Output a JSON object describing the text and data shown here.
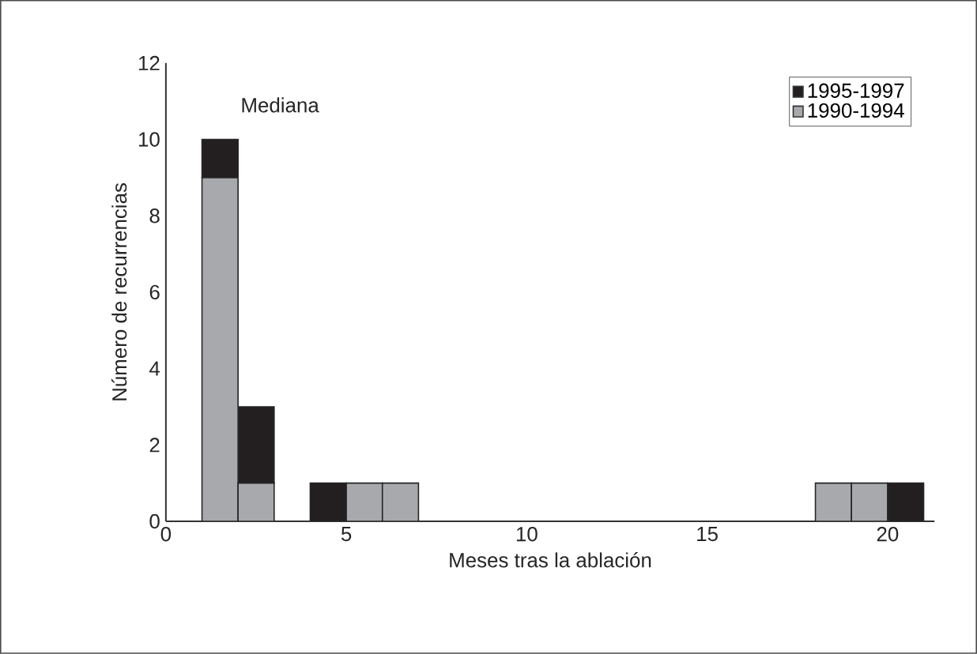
{
  "chart_data": {
    "type": "bar",
    "stacked": true,
    "x": [
      1.5,
      2.5,
      4.5,
      5.5,
      6.5,
      18.5,
      19.5,
      20.5
    ],
    "series": [
      {
        "name": "1990-1994",
        "color": "#a7a9ac",
        "values": [
          9,
          1,
          0,
          1,
          1,
          1,
          1,
          0
        ]
      },
      {
        "name": "1995-1997",
        "color": "#231f20",
        "values": [
          1,
          2,
          1,
          0,
          0,
          0,
          0,
          1
        ]
      }
    ],
    "xlabel": "Meses tras la ablación",
    "ylabel": "Número de recurrencias",
    "xlim": [
      0,
      21.3
    ],
    "xticks": [
      0,
      5,
      10,
      15,
      20
    ],
    "ylim": [
      0,
      12
    ],
    "yticks": [
      0,
      2,
      4,
      6,
      8,
      10,
      12
    ],
    "annotations": [
      "Mediana"
    ],
    "legend": "top right"
  }
}
